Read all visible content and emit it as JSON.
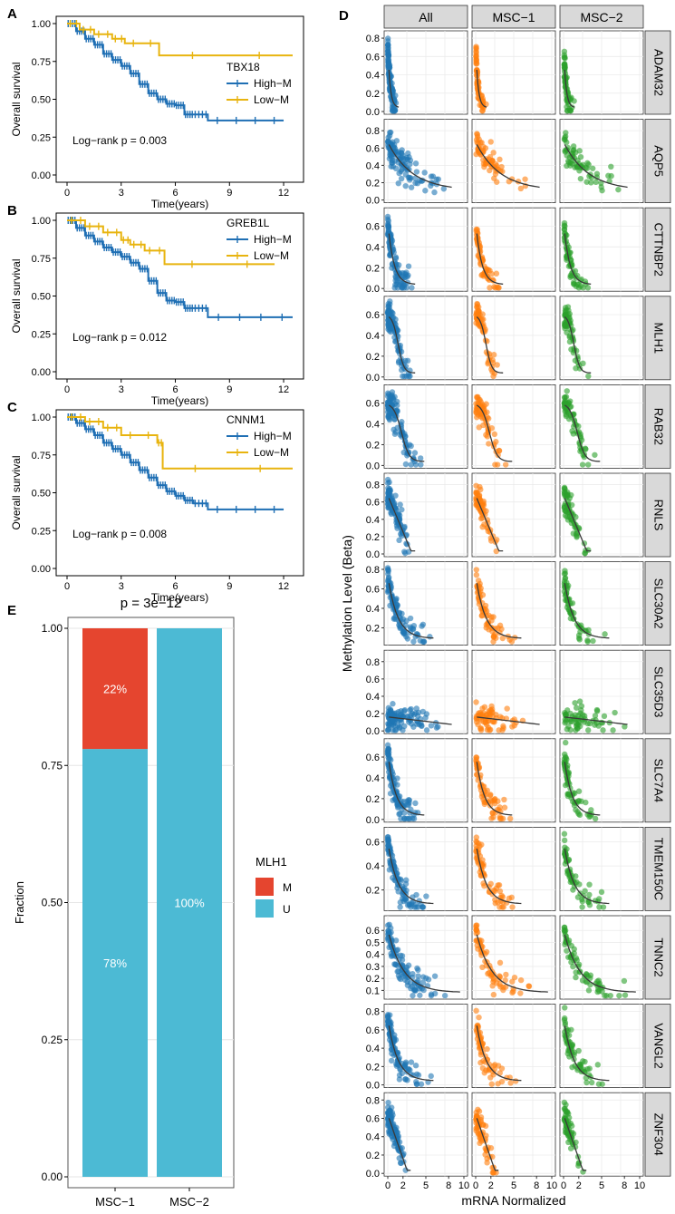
{
  "colors": {
    "high": "#1f6fb4",
    "low": "#e8b40f",
    "methyl": "#e5452f",
    "unmethyl": "#4cbad4",
    "all": "#1f77b4",
    "msc1": "#ff7f0e",
    "msc2": "#2ca02c",
    "strip": "#d9d9d9",
    "fit": "#3a3a3a"
  },
  "chart_data": [
    {
      "panel": "A",
      "type": "line",
      "subtype": "kaplan-meier",
      "ylabel": "Overall survival",
      "xlabel": "Time(years)",
      "xticks": [
        "0",
        "3",
        "6",
        "9",
        "12"
      ],
      "yticks": [
        "0.00",
        "0.25",
        "0.50",
        "0.75",
        "1.00"
      ],
      "xlim": [
        0,
        12.5
      ],
      "ylim": [
        0,
        1
      ],
      "legend_title": "TBX18",
      "annotation": "Log−rank p = 0.003",
      "series": [
        {
          "name": "High−M",
          "x": [
            0,
            0.5,
            1,
            1.5,
            2,
            2.5,
            3,
            3.5,
            4,
            4.5,
            5,
            5.5,
            6,
            6.5,
            7,
            7.8,
            12
          ],
          "y": [
            1,
            0.95,
            0.9,
            0.86,
            0.8,
            0.76,
            0.72,
            0.67,
            0.6,
            0.54,
            0.5,
            0.47,
            0.46,
            0.4,
            0.4,
            0.36,
            0.36
          ]
        },
        {
          "name": "Low−M",
          "x": [
            0,
            0.7,
            1.5,
            2.5,
            3.2,
            5.1,
            12.5
          ],
          "y": [
            1,
            0.96,
            0.93,
            0.9,
            0.87,
            0.79,
            0.79
          ]
        }
      ]
    },
    {
      "panel": "B",
      "type": "line",
      "subtype": "kaplan-meier",
      "ylabel": "Overall survival",
      "xlabel": "Time(years)",
      "xticks": [
        "0",
        "3",
        "6",
        "9",
        "12"
      ],
      "yticks": [
        "0.00",
        "0.25",
        "0.50",
        "0.75",
        "1.00"
      ],
      "xlim": [
        0,
        12.5
      ],
      "ylim": [
        0,
        1
      ],
      "legend_title": "GREB1L",
      "annotation": "Log−rank p = 0.012",
      "series": [
        {
          "name": "High−M",
          "x": [
            0,
            0.5,
            1,
            1.5,
            2,
            2.5,
            3,
            3.5,
            4,
            4.5,
            5,
            5.5,
            6,
            6.5,
            7,
            7.8,
            12.5
          ],
          "y": [
            1,
            0.95,
            0.9,
            0.86,
            0.82,
            0.79,
            0.76,
            0.72,
            0.68,
            0.6,
            0.52,
            0.47,
            0.46,
            0.42,
            0.42,
            0.36,
            0.36
          ]
        },
        {
          "name": "Low−M",
          "x": [
            0,
            1,
            2,
            3,
            3.5,
            4.3,
            5.4,
            11.5
          ],
          "y": [
            1,
            0.96,
            0.92,
            0.87,
            0.84,
            0.8,
            0.71,
            0.71
          ]
        }
      ]
    },
    {
      "panel": "C",
      "type": "line",
      "subtype": "kaplan-meier",
      "ylabel": "Overall survival",
      "xlabel": "Time(years)",
      "xticks": [
        "0",
        "3",
        "6",
        "9",
        "12"
      ],
      "yticks": [
        "0.00",
        "0.25",
        "0.50",
        "0.75",
        "1.00"
      ],
      "xlim": [
        0,
        12.5
      ],
      "ylim": [
        0,
        1
      ],
      "legend_title": "CNNM1",
      "annotation": "Log−rank p = 0.008",
      "series": [
        {
          "name": "High−M",
          "x": [
            0,
            0.5,
            1,
            1.5,
            2,
            2.5,
            3,
            3.5,
            4,
            4.5,
            5,
            5.5,
            6,
            6.5,
            7,
            7.8,
            12
          ],
          "y": [
            1,
            0.96,
            0.92,
            0.88,
            0.83,
            0.79,
            0.75,
            0.7,
            0.65,
            0.6,
            0.55,
            0.51,
            0.48,
            0.45,
            0.43,
            0.39,
            0.39
          ]
        },
        {
          "name": "Low−M",
          "x": [
            0,
            1,
            2,
            3,
            5,
            5.3,
            12.5
          ],
          "y": [
            1,
            0.97,
            0.93,
            0.88,
            0.83,
            0.66,
            0.66
          ]
        }
      ]
    },
    {
      "panel": "E",
      "type": "bar",
      "subtype": "stacked-fraction",
      "title": "p = 3e−12",
      "ylabel": "Fraction",
      "categories": [
        "MSC−1",
        "MSC−2"
      ],
      "yticks": [
        "0.00",
        "0.25",
        "0.50",
        "0.75",
        "1.00"
      ],
      "ylim": [
        0,
        1
      ],
      "legend_title": "MLH1",
      "series": [
        {
          "name": "M",
          "values": [
            0.22,
            0.0
          ],
          "labels": [
            "22%",
            ""
          ]
        },
        {
          "name": "U",
          "values": [
            0.78,
            1.0
          ],
          "labels": [
            "78%",
            "100%"
          ]
        }
      ]
    },
    {
      "panel": "D",
      "type": "scatter",
      "subtype": "facet-grid",
      "xlabel": "mRNA Normalized",
      "ylabel": "Methylation Level (Beta)",
      "columns": [
        "All",
        "MSC−1",
        "MSC−2"
      ],
      "xticks": [
        "0",
        "2",
        "5",
        "8",
        "10"
      ],
      "xlim": [
        0,
        10
      ],
      "rows": [
        {
          "gene": "ADAM32",
          "yticks": [
            "0.0",
            "0.2",
            "0.4",
            "0.6",
            "0.8"
          ],
          "ylim": [
            0,
            0.85
          ],
          "shape": "steep",
          "center": 0.7,
          "xspread": 1.2
        },
        {
          "gene": "AQP5",
          "yticks": [
            "0.0",
            "0.2",
            "0.4",
            "0.6",
            "0.8"
          ],
          "ylim": [
            0,
            0.9
          ],
          "shape": "wide",
          "center": 0.6,
          "xspread": 7
        },
        {
          "gene": "CTTNBP2",
          "yticks": [
            "0.0",
            "0.2",
            "0.4",
            "0.6"
          ],
          "ylim": [
            0,
            0.75
          ],
          "shape": "steep",
          "center": 0.5,
          "xspread": 3
        },
        {
          "gene": "MLH1",
          "yticks": [
            "0.0",
            "0.2",
            "0.4",
            "0.6"
          ],
          "ylim": [
            0,
            0.75
          ],
          "shape": "sigmoid",
          "center": 0.6,
          "xspread": 3
        },
        {
          "gene": "RAB32",
          "yticks": [
            "0.0",
            "0.2",
            "0.4",
            "0.6"
          ],
          "ylim": [
            0,
            0.75
          ],
          "shape": "sigmoid",
          "center": 0.6,
          "xspread": 4
        },
        {
          "gene": "RNLS",
          "yticks": [
            "0.0",
            "0.2",
            "0.4",
            "0.6",
            "0.8"
          ],
          "ylim": [
            0,
            0.9
          ],
          "shape": "linear",
          "center": 0.6,
          "xspread": 3
        },
        {
          "gene": "SLC30A2",
          "yticks": [
            "0.2",
            "0.4",
            "0.6",
            "0.8"
          ],
          "ylim": [
            0.05,
            0.85
          ],
          "shape": "steep",
          "center": 0.6,
          "xspread": 5
        },
        {
          "gene": "SLC35D3",
          "yticks": [
            "0.0",
            "0.2",
            "0.4",
            "0.6",
            "0.8"
          ],
          "ylim": [
            0,
            0.9
          ],
          "shape": "flat",
          "center": 0.3,
          "xspread": 7
        },
        {
          "gene": "SLC7A4",
          "yticks": [
            "0.0",
            "0.2",
            "0.4",
            "0.6"
          ],
          "ylim": [
            0,
            0.75
          ],
          "shape": "steep",
          "center": 0.4,
          "xspread": 4
        },
        {
          "gene": "TMEM150C",
          "yticks": [
            "0.2",
            "0.4",
            "0.6"
          ],
          "ylim": [
            0.05,
            0.7
          ],
          "shape": "steep",
          "center": 0.4,
          "xspread": 5
        },
        {
          "gene": "TNNC2",
          "yticks": [
            "0.1",
            "0.2",
            "0.3",
            "0.4",
            "0.5",
            "0.6"
          ],
          "ylim": [
            0.05,
            0.7
          ],
          "shape": "steep",
          "center": 0.35,
          "xspread": 8
        },
        {
          "gene": "VANGL2",
          "yticks": [
            "0.0",
            "0.2",
            "0.4",
            "0.6",
            "0.8"
          ],
          "ylim": [
            0,
            0.85
          ],
          "shape": "steep",
          "center": 0.5,
          "xspread": 5
        },
        {
          "gene": "ZNF304",
          "yticks": [
            "0.0",
            "0.2",
            "0.4",
            "0.6",
            "0.8"
          ],
          "ylim": [
            0,
            0.85
          ],
          "shape": "linear",
          "center": 0.6,
          "xspread": 2.5
        }
      ]
    }
  ]
}
